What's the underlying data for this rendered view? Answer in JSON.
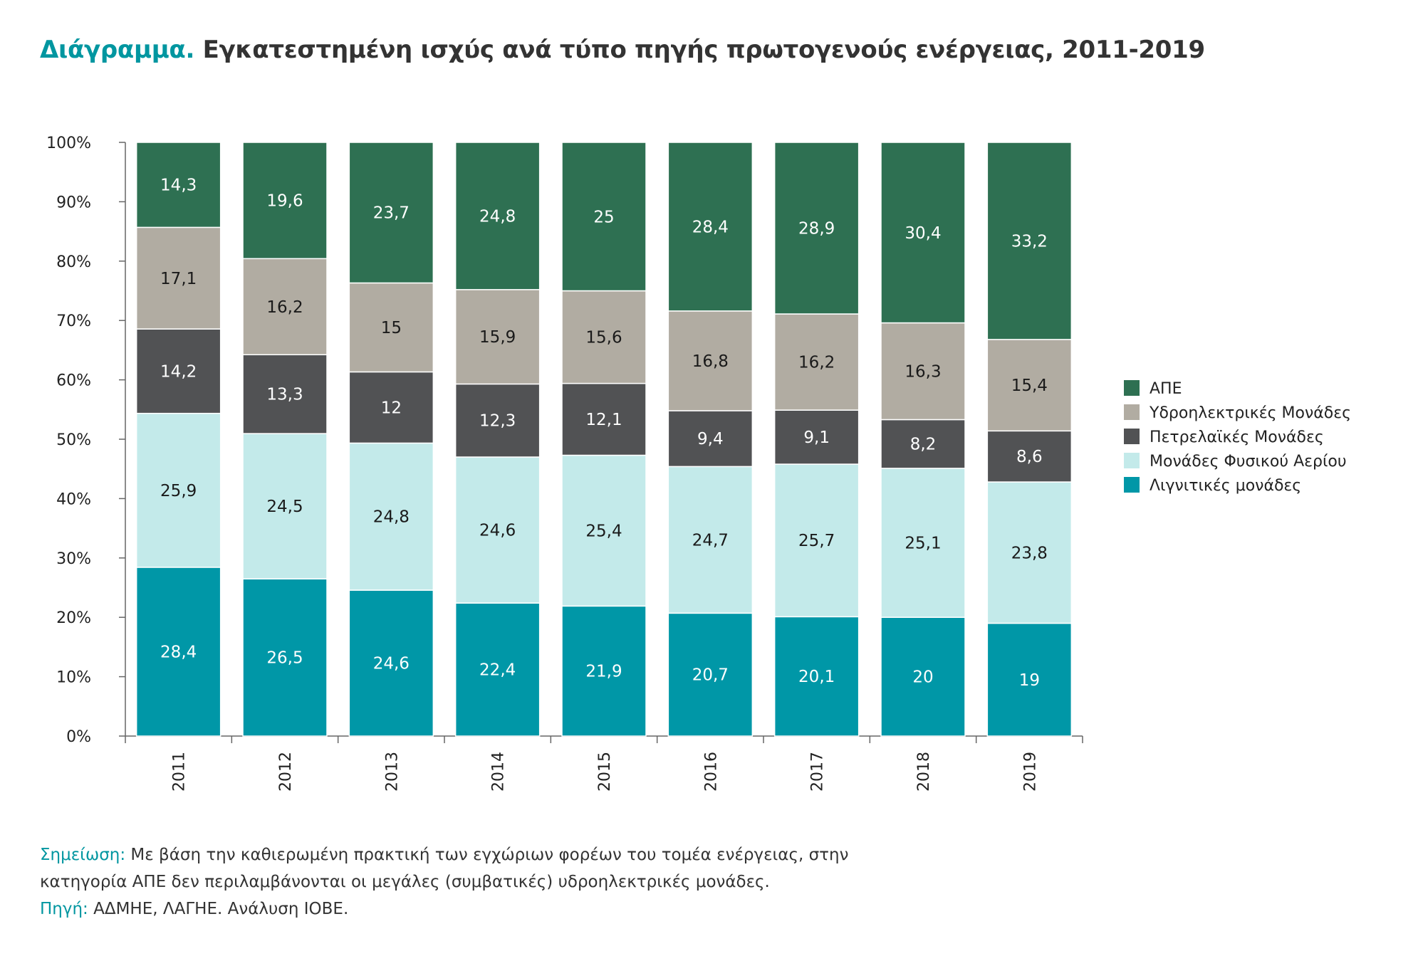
{
  "title": {
    "lead": "Διάγραμμα.",
    "rest": "Εγκατεστημένη ισχύς ανά τύπο πηγής πρωτογενούς ενέργειας, 2011-2019"
  },
  "colors": {
    "accent": "#0096a0",
    "ape": "#2e7052",
    "hydro": "#b1aca2",
    "oil": "#515254",
    "gas": "#c3eaea",
    "lignite": "#0097a7"
  },
  "chart_data": {
    "type": "bar",
    "stacked": true,
    "normalized": true,
    "categories": [
      "2011",
      "2012",
      "2013",
      "2014",
      "2015",
      "2016",
      "2017",
      "2018",
      "2019"
    ],
    "series": [
      {
        "key": "lignite",
        "name": "Λιγνιτικές μονάδες",
        "values": [
          28.4,
          26.5,
          24.6,
          22.4,
          21.9,
          20.7,
          20.1,
          20,
          19
        ],
        "labels": [
          "28,4",
          "26,5",
          "24,6",
          "22,4",
          "21,9",
          "20,7",
          "20,1",
          "20",
          "19"
        ]
      },
      {
        "key": "gas",
        "name": "Μονάδες Φυσικού Αερίου",
        "values": [
          25.9,
          24.5,
          24.8,
          24.6,
          25.4,
          24.7,
          25.7,
          25.1,
          23.8
        ],
        "labels": [
          "25,9",
          "24,5",
          "24,8",
          "24,6",
          "25,4",
          "24,7",
          "25,7",
          "25,1",
          "23,8"
        ]
      },
      {
        "key": "oil",
        "name": "Πετρελαϊκές Μονάδες",
        "values": [
          14.2,
          13.3,
          12,
          12.3,
          12.1,
          9.4,
          9.1,
          8.2,
          8.6
        ],
        "labels": [
          "14,2",
          "13,3",
          "12",
          "12,3",
          "12,1",
          "9,4",
          "9,1",
          "8,2",
          "8,6"
        ]
      },
      {
        "key": "hydro",
        "name": "Υδροηλεκτρικές Μονάδες",
        "values": [
          17.1,
          16.2,
          15,
          15.9,
          15.6,
          16.8,
          16.2,
          16.3,
          15.4
        ],
        "labels": [
          "17,1",
          "16,2",
          "15",
          "15,9",
          "15,6",
          "16,8",
          "16,2",
          "16,3",
          "15,4"
        ]
      },
      {
        "key": "ape",
        "name": "ΑΠΕ",
        "values": [
          14.3,
          19.6,
          23.7,
          24.8,
          25,
          28.4,
          28.9,
          30.4,
          33.2
        ],
        "labels": [
          "14,3",
          "19,6",
          "23,7",
          "24,8",
          "25",
          "28,4",
          "28,9",
          "30,4",
          "33,2"
        ]
      }
    ],
    "yticks": [
      "0%",
      "10%",
      "20%",
      "30%",
      "40%",
      "50%",
      "60%",
      "70%",
      "80%",
      "90%",
      "100%"
    ],
    "ylim": [
      0,
      100
    ],
    "legend_order": [
      "ape",
      "hydro",
      "oil",
      "gas",
      "lignite"
    ],
    "legend_position": "right"
  },
  "notes": {
    "note_label": "Σημείωση:",
    "note_line1": " Με βάση την καθιερωμένη πρακτική των εγχώριων φορέων του τομέα ενέργειας, στην",
    "note_line2": "κατηγορία ΑΠΕ δεν περιλαμβάνονται οι μεγάλες (συμβατικές) υδροηλεκτρικές μονάδες.",
    "source_label": "Πηγή:",
    "source_text": " ΑΔΜΗΕ, ΛΑΓΗΕ. Ανάλυση ΙΟΒΕ."
  }
}
